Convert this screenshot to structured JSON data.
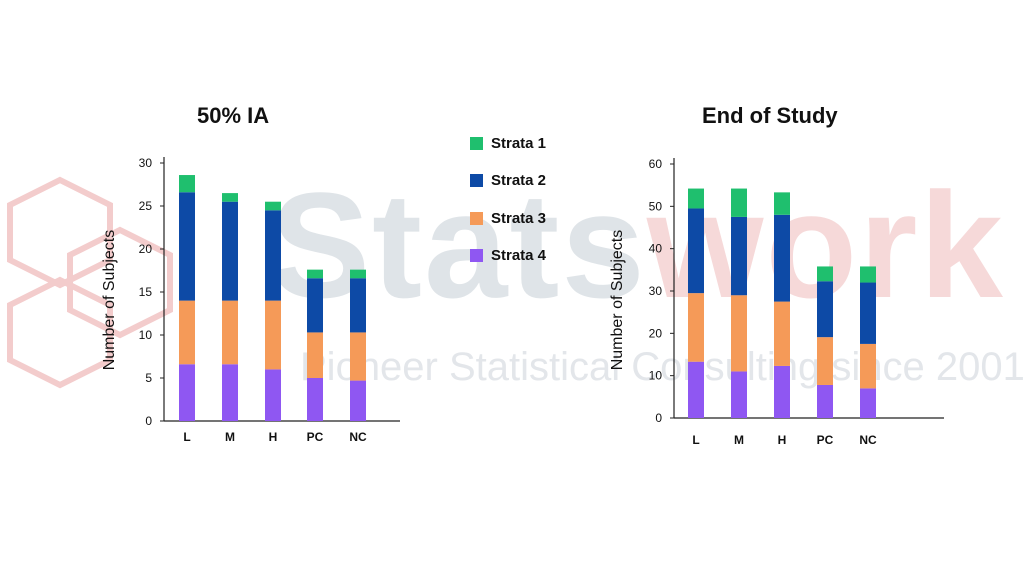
{
  "watermark": {
    "text_a": "Stats",
    "text_b": "work",
    "tagline": "Pioneer Statistical Consulting since 2001"
  },
  "colors": {
    "strata1": "#1fbf6e",
    "strata2": "#0d4aa6",
    "strata3": "#f59a58",
    "strata4": "#8f57f2",
    "axis": "#222222"
  },
  "legend": [
    {
      "label": "Strata 1",
      "color": "#1fbf6e"
    },
    {
      "label": "Strata 2",
      "color": "#0d4aa6"
    },
    {
      "label": "Strata 3",
      "color": "#f59a58"
    },
    {
      "label": "Strata 4",
      "color": "#8f57f2"
    }
  ],
  "chart_data": [
    {
      "type": "bar",
      "stacked": true,
      "title": "50% IA",
      "ylabel": "Number of Subjects",
      "xlabel": "",
      "categories": [
        "L",
        "M",
        "H",
        "PC",
        "NC"
      ],
      "ylim": [
        0,
        30
      ],
      "yticks": [
        0,
        5,
        10,
        15,
        20,
        25,
        30
      ],
      "series": [
        {
          "name": "Strata 4",
          "values": [
            6.6,
            6.6,
            6.0,
            5.0,
            4.7
          ]
        },
        {
          "name": "Strata 3",
          "values": [
            7.4,
            7.4,
            8.0,
            5.3,
            5.6
          ]
        },
        {
          "name": "Strata 2",
          "values": [
            12.6,
            11.5,
            10.5,
            6.3,
            6.3
          ]
        },
        {
          "name": "Strata 1",
          "values": [
            2.0,
            1.0,
            1.0,
            1.0,
            1.0
          ]
        }
      ]
    },
    {
      "type": "bar",
      "stacked": true,
      "title": "End of Study",
      "ylabel": "Number of Subjects",
      "xlabel": "",
      "categories": [
        "L",
        "M",
        "H",
        "PC",
        "NC"
      ],
      "ylim": [
        0,
        60
      ],
      "yticks": [
        0,
        10,
        20,
        30,
        40,
        50,
        60
      ],
      "series": [
        {
          "name": "Strata 4",
          "values": [
            13.3,
            11.0,
            12.3,
            7.8,
            7.0
          ]
        },
        {
          "name": "Strata 3",
          "values": [
            16.2,
            18.0,
            15.2,
            11.3,
            10.5
          ]
        },
        {
          "name": "Strata 2",
          "values": [
            20.0,
            18.5,
            20.5,
            13.2,
            14.5
          ]
        },
        {
          "name": "Strata 1",
          "values": [
            4.7,
            6.7,
            5.3,
            3.5,
            3.8
          ]
        }
      ]
    }
  ]
}
